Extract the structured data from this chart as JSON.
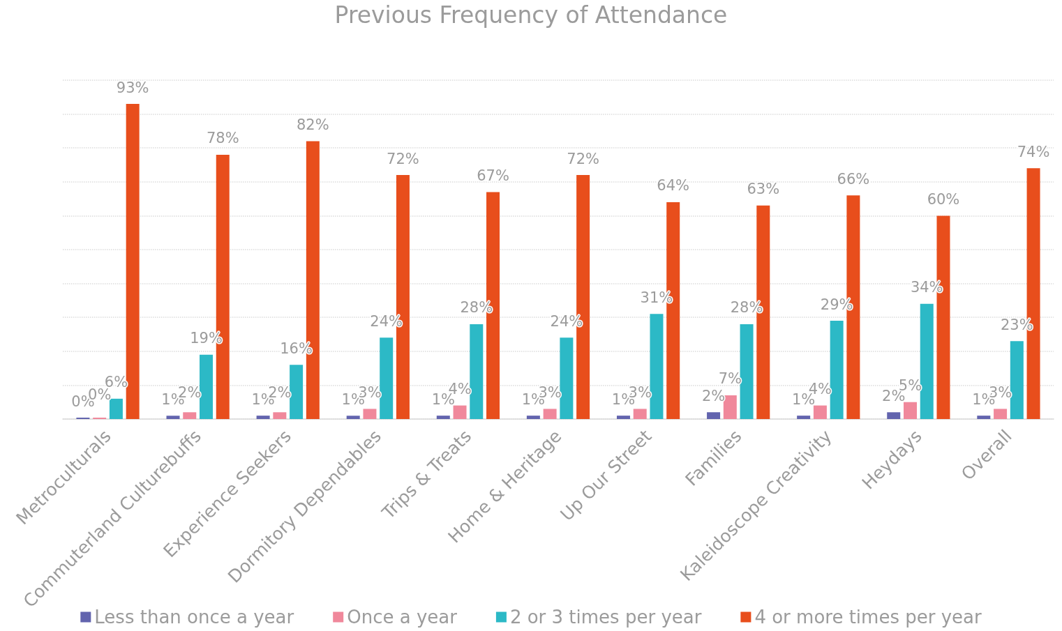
{
  "chart_data": {
    "type": "bar",
    "title": "Previous Frequency of Attendance",
    "categories": [
      "Metroculturals",
      "Commuterland Culturebuffs",
      "Experience Seekers",
      "Dormitory Dependables",
      "Trips & Treats",
      "Home & Heritage",
      "Up Our Street",
      "Families",
      "Kaleidoscope Creativity",
      "Heydays",
      "Overall"
    ],
    "series": [
      {
        "name": "Less than once a year",
        "color": "#6264ae",
        "values": [
          0,
          1,
          1,
          1,
          1,
          1,
          1,
          2,
          1,
          2,
          1
        ],
        "value_labels": [
          "0%",
          "1%",
          "1%",
          "1%",
          "1%",
          "1%",
          "1%",
          "2%",
          "1%",
          "2%",
          "1%"
        ]
      },
      {
        "name": "Once a year",
        "color": "#f0889b",
        "values": [
          0,
          2,
          2,
          3,
          4,
          3,
          3,
          7,
          4,
          5,
          3
        ],
        "value_labels": [
          "0%",
          "2%",
          "2%",
          "3%",
          "4%",
          "3%",
          "3%",
          "7%",
          "4%",
          "5%",
          "3%"
        ]
      },
      {
        "name": "2 or 3 times per year",
        "color": "#2cb9c6",
        "values": [
          6,
          19,
          16,
          24,
          28,
          24,
          31,
          28,
          29,
          34,
          23
        ],
        "value_labels": [
          "6%",
          "19%",
          "16%",
          "24%",
          "28%",
          "24%",
          "31%",
          "28%",
          "29%",
          "34%",
          "23%"
        ]
      },
      {
        "name": "4 or more times per year",
        "color": "#e84e1c",
        "values": [
          93,
          78,
          82,
          72,
          67,
          72,
          64,
          63,
          66,
          60,
          74
        ],
        "value_labels": [
          "93%",
          "78%",
          "82%",
          "72%",
          "67%",
          "72%",
          "64%",
          "63%",
          "66%",
          "60%",
          "74%"
        ]
      }
    ],
    "ylim": [
      0,
      100
    ],
    "yticks": [
      {
        "value": 0,
        "label": null
      },
      {
        "value": 10,
        "label": null
      },
      {
        "value": 20,
        "label": null
      },
      {
        "value": 30,
        "label": null
      },
      {
        "value": 40,
        "label": null
      },
      {
        "value": 50,
        "label": null
      },
      {
        "value": 60,
        "label": null
      },
      {
        "value": 70,
        "label": null
      },
      {
        "value": 80,
        "label": null
      },
      {
        "value": 90,
        "label": null
      },
      {
        "value": 100,
        "label": null
      }
    ],
    "tick_labels": "x",
    "grid": "y",
    "legend": "bottom"
  }
}
